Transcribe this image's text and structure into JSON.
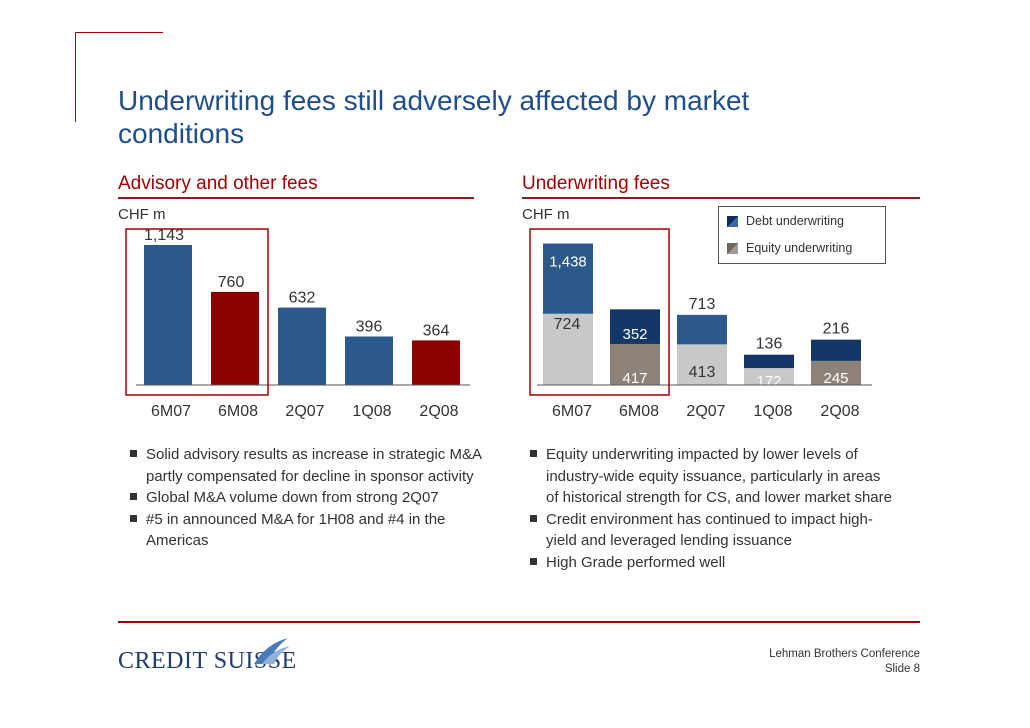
{
  "title": "Underwriting fees still adversely affected by market conditions",
  "colors": {
    "accent": "#a50000",
    "title_blue": "#1f4e8c",
    "bar_blue": "#2b5a8a",
    "bar_red": "#8b0000",
    "debt": "#14376a",
    "equity": "#8c8279",
    "equity_light": "#c8c8c8"
  },
  "left": {
    "heading": "Advisory and other fees",
    "unit": "CHF m",
    "bullets": [
      "Solid advisory results as increase in strategic M&A partly compensated for decline in sponsor activity",
      "Global M&A volume down from strong 2Q07",
      "#5 in announced M&A for 1H08 and #4 in the Americas"
    ]
  },
  "right": {
    "heading": "Underwriting fees",
    "unit": "CHF m",
    "legend": {
      "debt_label": "Debt underwriting",
      "equity_label": "Equity underwriting"
    },
    "bullets": [
      "Equity underwriting impacted by lower levels of industry-wide equity issuance, particularly in areas of historical strength for CS, and lower market share",
      "Credit environment has continued to impact high-yield and leveraged lending issuance",
      "High Grade performed well"
    ]
  },
  "chart_data": [
    {
      "type": "bar",
      "title": "Advisory and other fees",
      "ylabel": "CHF m",
      "categories": [
        "6M07",
        "6M08",
        "2Q07",
        "1Q08",
        "2Q08"
      ],
      "values": [
        1143,
        760,
        632,
        396,
        364
      ],
      "value_labels": [
        "1,143",
        "760",
        "632",
        "396",
        "364"
      ],
      "highlighted": [
        false,
        true,
        false,
        false,
        true
      ],
      "boxed": [
        "6M07",
        "6M08"
      ],
      "ylim": [
        0,
        1200
      ]
    },
    {
      "type": "bar",
      "stacked": true,
      "title": "Underwriting fees",
      "ylabel": "CHF m",
      "categories": [
        "6M07",
        "6M08",
        "2Q07",
        "1Q08",
        "2Q08"
      ],
      "series": [
        {
          "name": "Equity underwriting",
          "values": [
            724,
            417,
            413,
            172,
            245
          ],
          "labels": [
            "724",
            "417",
            "413",
            "172",
            "245"
          ]
        },
        {
          "name": "Debt underwriting",
          "values": [
            714,
            352,
            300,
            136,
            216
          ],
          "labels": [
            "",
            "352",
            "",
            "136",
            "216"
          ]
        }
      ],
      "total_labels": [
        "1,438",
        "",
        "713",
        "",
        ""
      ],
      "boxed": [
        "6M07"
      ],
      "ylim": [
        0,
        1500
      ]
    }
  ],
  "footer": {
    "logo": "CREDIT SUISSE",
    "conference": "Lehman Brothers Conference",
    "slide": "Slide 8"
  }
}
